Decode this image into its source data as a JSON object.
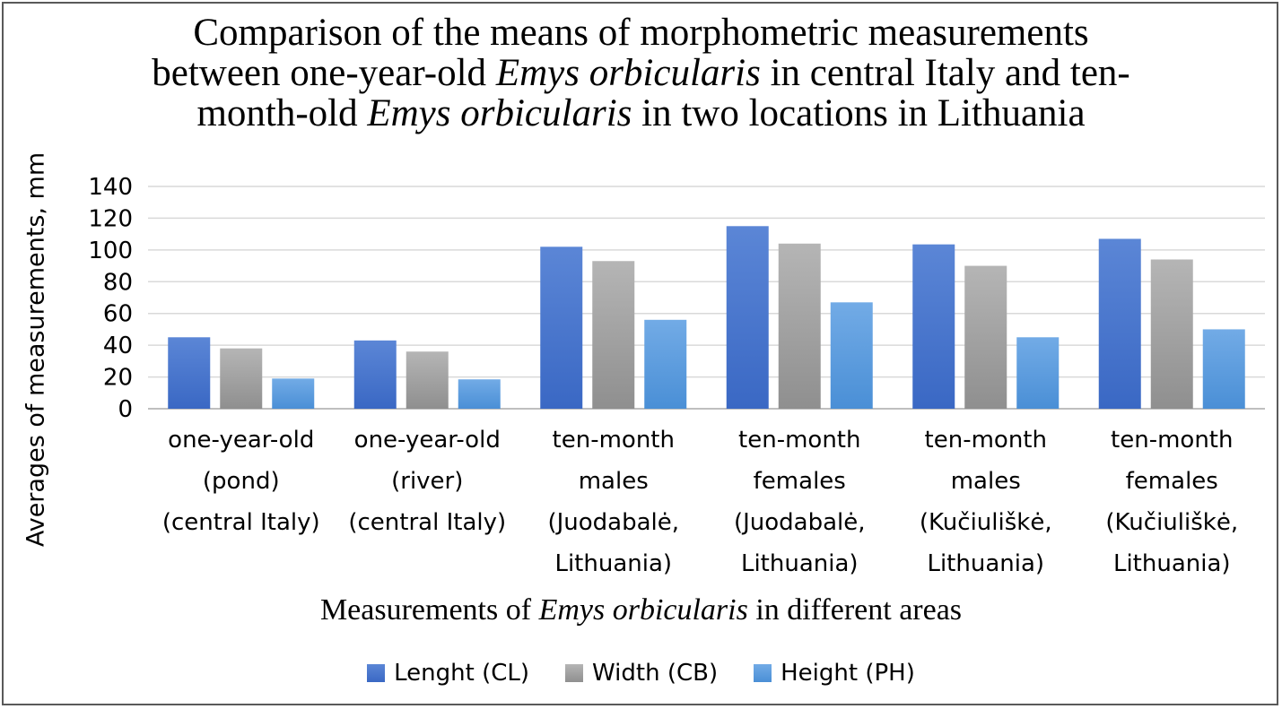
{
  "chart_data": {
    "type": "bar",
    "title_lines": [
      [
        {
          "text": "Comparison of the means of morphometric measurements",
          "italic": false
        }
      ],
      [
        {
          "text": "between one-year-old ",
          "italic": false
        },
        {
          "text": "Emys orbicularis",
          "italic": true
        },
        {
          "text": " in central Italy and ten-",
          "italic": false
        }
      ],
      [
        {
          "text": "month-old ",
          "italic": false
        },
        {
          "text": "Emys orbicularis",
          "italic": true
        },
        {
          "text": " in two locations in Lithuania",
          "italic": false
        }
      ]
    ],
    "xlabel_parts": [
      {
        "text": "Measurements of ",
        "italic": false
      },
      {
        "text": "Emys orbicularis",
        "italic": true
      },
      {
        "text": " in different areas",
        "italic": false
      }
    ],
    "ylabel": "Averages of measurements, mm",
    "ylim": [
      0,
      140
    ],
    "yticks": [
      0,
      20,
      40,
      60,
      80,
      100,
      120,
      140
    ],
    "grid": true,
    "legend_position": "bottom",
    "categories": [
      [
        "one-year-old",
        "(pond)",
        "(central Italy)"
      ],
      [
        "one-year-old",
        "(river)",
        "(central Italy)"
      ],
      [
        "ten-month",
        "males",
        "(Juodabalė,",
        "Lithuania)"
      ],
      [
        "ten-month",
        "females",
        "(Juodabalė,",
        "Lithuania)"
      ],
      [
        "ten-month",
        "males",
        "(Kučiuliškė,",
        "Lithuania)"
      ],
      [
        "ten-month",
        "females",
        "(Kučiuliškė,",
        "Lithuania)"
      ]
    ],
    "series": [
      {
        "name": "Lenght (CL)",
        "color": "#3a68c4",
        "color_light": "#5b86d6",
        "values": [
          45,
          43,
          102,
          115,
          103.5,
          107
        ]
      },
      {
        "name": "Width (CB)",
        "color": "#8f8f8f",
        "color_light": "#b5b5b5",
        "values": [
          38,
          36,
          93,
          104,
          90,
          94
        ]
      },
      {
        "name": "Height (PH)",
        "color": "#4a8fd6",
        "color_light": "#72abe6",
        "values": [
          19,
          18.5,
          56,
          67,
          45,
          50
        ]
      }
    ]
  }
}
